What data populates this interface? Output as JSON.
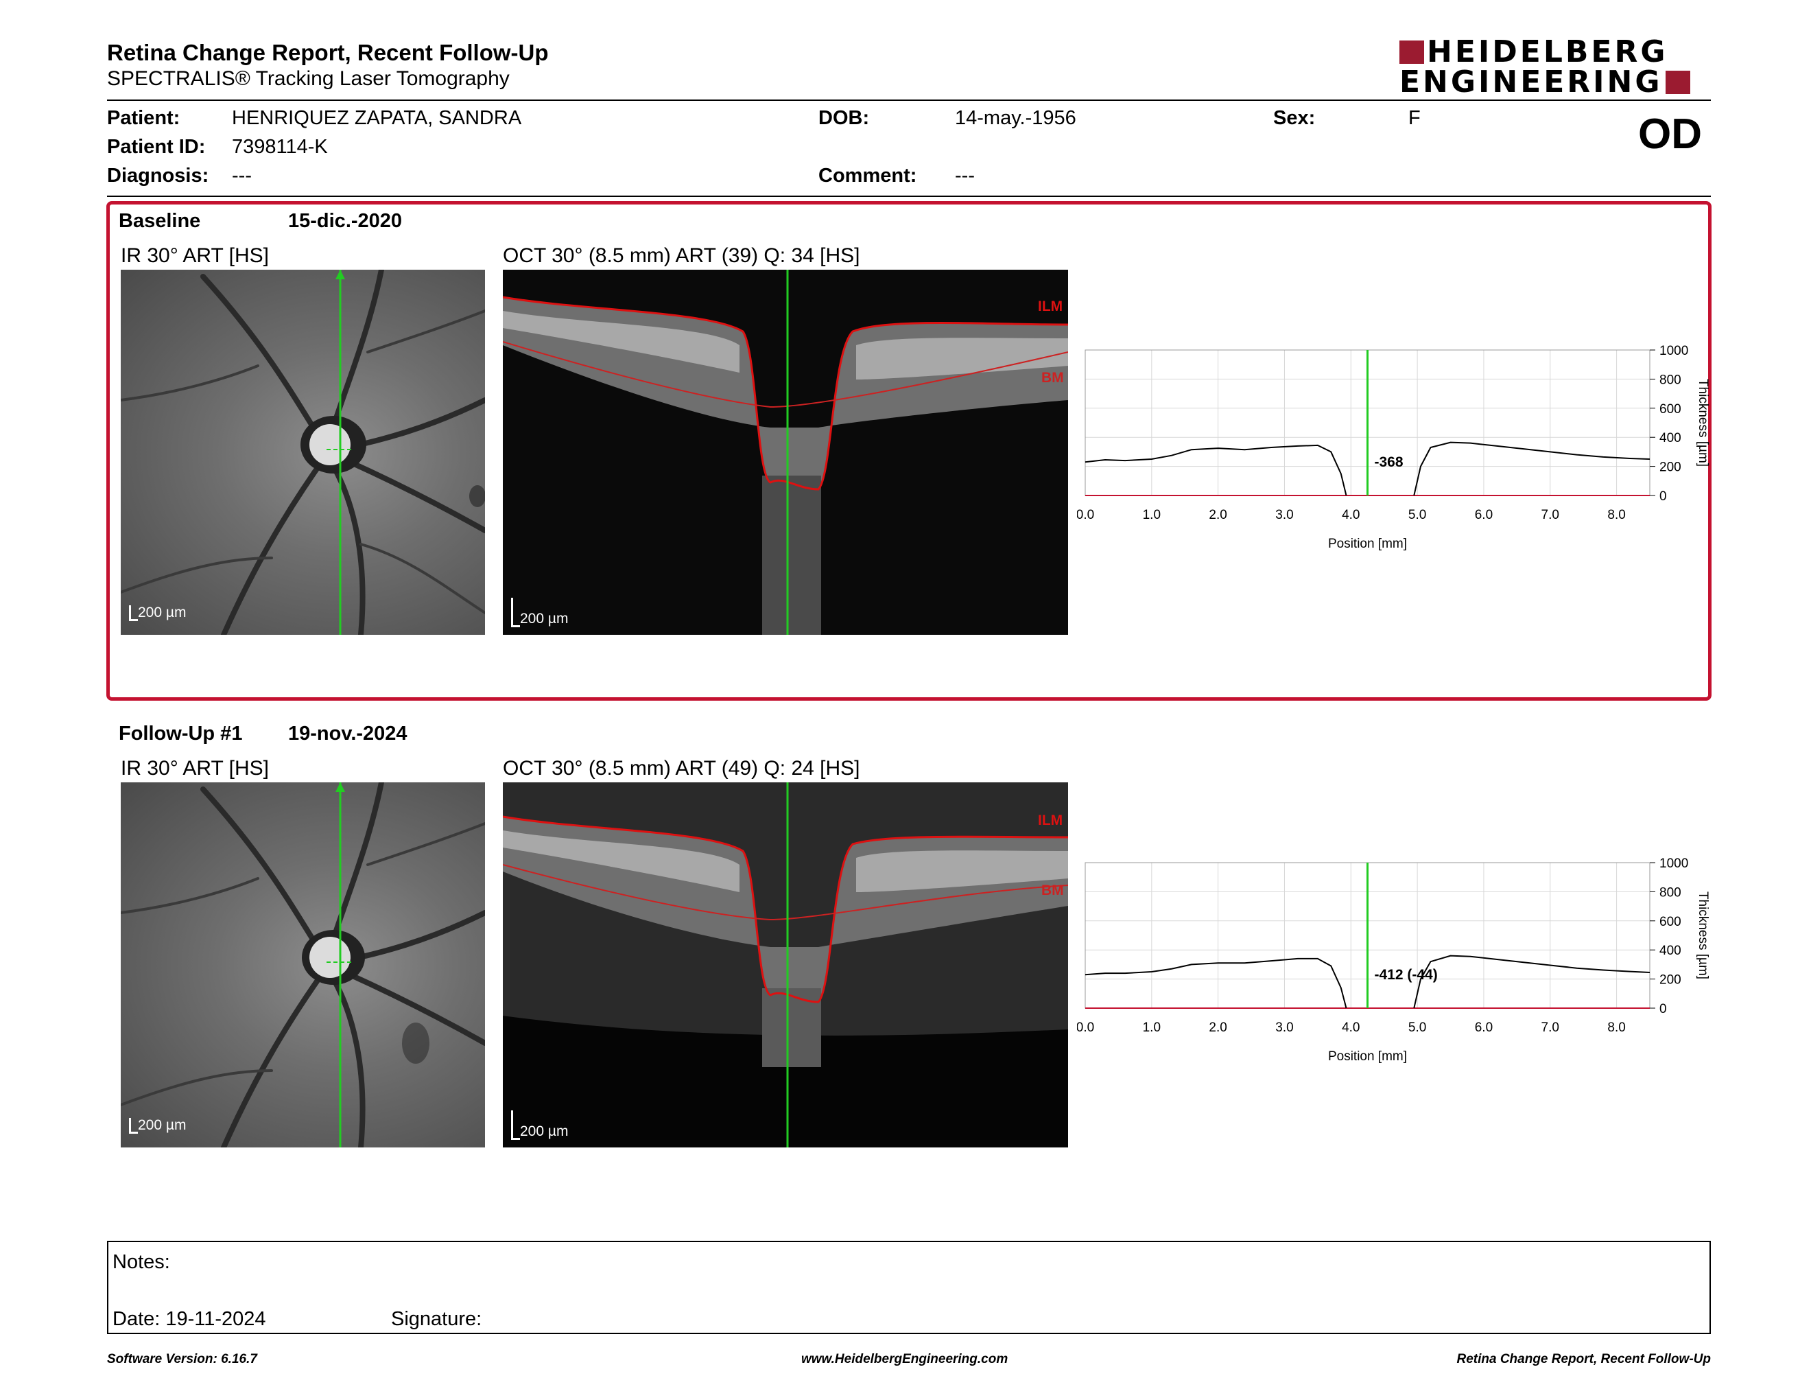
{
  "header": {
    "title": "Retina Change Report, Recent Follow-Up",
    "subtitle": "SPECTRALIS® Tracking Laser Tomography",
    "logo_line1": "HEIDELBERG",
    "logo_line2": "ENGINEERING",
    "eye": "OD"
  },
  "patient": {
    "patient_label": "Patient:",
    "patient_value": "HENRIQUEZ ZAPATA, SANDRA",
    "id_label": "Patient ID:",
    "id_value": "7398114-K",
    "diagnosis_label": "Diagnosis:",
    "diagnosis_value": "---",
    "dob_label": "DOB:",
    "dob_value": "14-may.-1956",
    "comment_label": "Comment:",
    "comment_value": "---",
    "sex_label": "Sex:",
    "sex_value": "F"
  },
  "baseline": {
    "label": "Baseline",
    "date": "15-dic.-2020",
    "ir_label": "IR 30° ART [HS]",
    "oct_label": "OCT 30° (8.5 mm) ART (39) Q: 34 [HS]",
    "scale": "200 µm",
    "ilm": "ILM",
    "bm": "BM",
    "cursor_value": "-368"
  },
  "followup": {
    "label": "Follow-Up #1",
    "date": "19-nov.-2024",
    "ir_label": "IR 30° ART [HS]",
    "oct_label": "OCT 30° (8.5 mm) ART (49) Q: 24 [HS]",
    "scale": "200 µm",
    "ilm": "ILM",
    "bm": "BM",
    "cursor_value": "-412 (-44)"
  },
  "chart_data": [
    {
      "type": "line",
      "name_ref": "baseline",
      "xlabel": "Position [mm]",
      "ylabel": "Thickness [µm]",
      "xlim": [
        0,
        8.5
      ],
      "ylim": [
        0,
        1000
      ],
      "xticks": [
        "0.0",
        "1.0",
        "2.0",
        "3.0",
        "4.0",
        "5.0",
        "6.0",
        "7.0",
        "8.0"
      ],
      "yticks": [
        "0",
        "200",
        "400",
        "600",
        "800",
        "1000"
      ],
      "cursor_x": 4.25,
      "cursor_label": "-368",
      "grid": true,
      "series": [
        {
          "x": [
            0.0,
            0.3,
            0.6,
            1.0,
            1.3,
            1.6,
            2.0,
            2.4,
            2.8,
            3.2,
            3.5,
            3.7,
            3.85,
            3.93
          ],
          "y": [
            230,
            245,
            240,
            250,
            275,
            315,
            325,
            315,
            330,
            340,
            345,
            300,
            150,
            0
          ]
        },
        {
          "x": [
            4.95,
            5.05,
            5.2,
            5.5,
            5.8,
            6.2,
            6.6,
            7.0,
            7.4,
            7.8,
            8.2,
            8.5
          ],
          "y": [
            0,
            200,
            330,
            365,
            360,
            340,
            320,
            300,
            280,
            265,
            255,
            250
          ]
        }
      ]
    },
    {
      "type": "line",
      "name_ref": "followup",
      "xlabel": "Position [mm]",
      "ylabel": "Thickness [µm]",
      "xlim": [
        0,
        8.5
      ],
      "ylim": [
        0,
        1000
      ],
      "xticks": [
        "0.0",
        "1.0",
        "2.0",
        "3.0",
        "4.0",
        "5.0",
        "6.0",
        "7.0",
        "8.0"
      ],
      "yticks": [
        "0",
        "200",
        "400",
        "600",
        "800",
        "1000"
      ],
      "cursor_x": 4.25,
      "cursor_label": "-412 (-44)",
      "grid": true,
      "series": [
        {
          "x": [
            0.0,
            0.3,
            0.6,
            1.0,
            1.3,
            1.6,
            2.0,
            2.4,
            2.8,
            3.2,
            3.5,
            3.7,
            3.85,
            3.93
          ],
          "y": [
            230,
            240,
            240,
            250,
            270,
            300,
            310,
            310,
            325,
            340,
            340,
            290,
            140,
            0
          ]
        },
        {
          "x": [
            4.95,
            5.05,
            5.2,
            5.5,
            5.8,
            6.2,
            6.6,
            7.0,
            7.4,
            7.8,
            8.2,
            8.5
          ],
          "y": [
            0,
            200,
            320,
            360,
            355,
            335,
            315,
            295,
            275,
            262,
            252,
            245
          ]
        }
      ]
    }
  ],
  "notes": {
    "notes_label": "Notes:",
    "date_label": "Date: 19-11-2024",
    "signature_label": "Signature:"
  },
  "footer": {
    "software": "Software Version: 6.16.7",
    "website": "www.HeidelbergEngineering.com",
    "report": "Retina Change Report, Recent Follow-Up"
  },
  "colors": {
    "accent_red": "#c41230",
    "logo_red": "#9b1b30",
    "cursor_green": "#22cc22",
    "change_fill": "#66cc66"
  }
}
